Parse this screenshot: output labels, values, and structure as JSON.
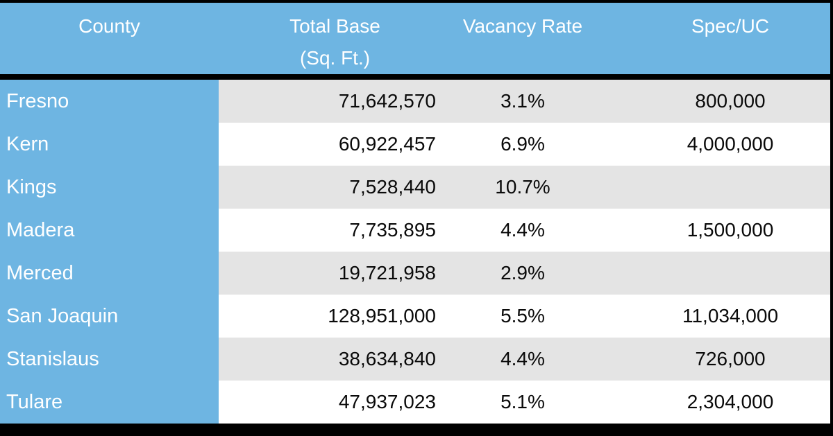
{
  "colors": {
    "header_blue": "#6EB5E2",
    "stripe_gray": "#E4E4E4",
    "row_white": "#FFFFFF",
    "border_black": "#000000",
    "header_text": "#FFFFFF",
    "data_text": "#0A0A0A"
  },
  "table": {
    "columns": [
      {
        "key": "county",
        "label": "County",
        "sublabel": ""
      },
      {
        "key": "total_base",
        "label": "Total Base",
        "sublabel": "(Sq. Ft.)"
      },
      {
        "key": "vacancy_rate",
        "label": "Vacancy Rate",
        "sublabel": ""
      },
      {
        "key": "spec_uc",
        "label": "Spec/UC",
        "sublabel": ""
      }
    ],
    "rows": [
      {
        "county": "Fresno",
        "total_base": "71,642,570",
        "vacancy_rate": "3.1%",
        "spec_uc": "800,000"
      },
      {
        "county": "Kern",
        "total_base": "60,922,457",
        "vacancy_rate": "6.9%",
        "spec_uc": "4,000,000"
      },
      {
        "county": "Kings",
        "total_base": "7,528,440",
        "vacancy_rate": "10.7%",
        "spec_uc": ""
      },
      {
        "county": "Madera",
        "total_base": "7,735,895",
        "vacancy_rate": "4.4%",
        "spec_uc": "1,500,000"
      },
      {
        "county": "Merced",
        "total_base": "19,721,958",
        "vacancy_rate": "2.9%",
        "spec_uc": ""
      },
      {
        "county": "San Joaquin",
        "total_base": "128,951,000",
        "vacancy_rate": "5.5%",
        "spec_uc": "11,034,000"
      },
      {
        "county": "Stanislaus",
        "total_base": "38,634,840",
        "vacancy_rate": "4.4%",
        "spec_uc": "726,000"
      },
      {
        "county": "Tulare",
        "total_base": "47,937,023",
        "vacancy_rate": "5.1%",
        "spec_uc": "2,304,000"
      }
    ]
  },
  "chart_data": {
    "type": "table",
    "title": "",
    "columns": [
      "County",
      "Total Base (Sq. Ft.)",
      "Vacancy Rate",
      "Spec/UC"
    ],
    "rows": [
      [
        "Fresno",
        71642570,
        "3.1%",
        800000
      ],
      [
        "Kern",
        60922457,
        "6.9%",
        4000000
      ],
      [
        "Kings",
        7528440,
        "10.7%",
        null
      ],
      [
        "Madera",
        7735895,
        "4.4%",
        1500000
      ],
      [
        "Merced",
        19721958,
        "2.9%",
        null
      ],
      [
        "San Joaquin",
        128951000,
        "5.5%",
        11034000
      ],
      [
        "Stanislaus",
        38634840,
        "4.4%",
        726000
      ],
      [
        "Tulare",
        47937023,
        "5.1%",
        2304000
      ]
    ],
    "layout_hints": {
      "striped_rows": true,
      "header_background": "#6EB5E2",
      "row_label_background": "#6EB5E2",
      "total_base_alignment": "right",
      "vacancy_alignment": "center",
      "spec_uc_alignment": "center"
    }
  }
}
